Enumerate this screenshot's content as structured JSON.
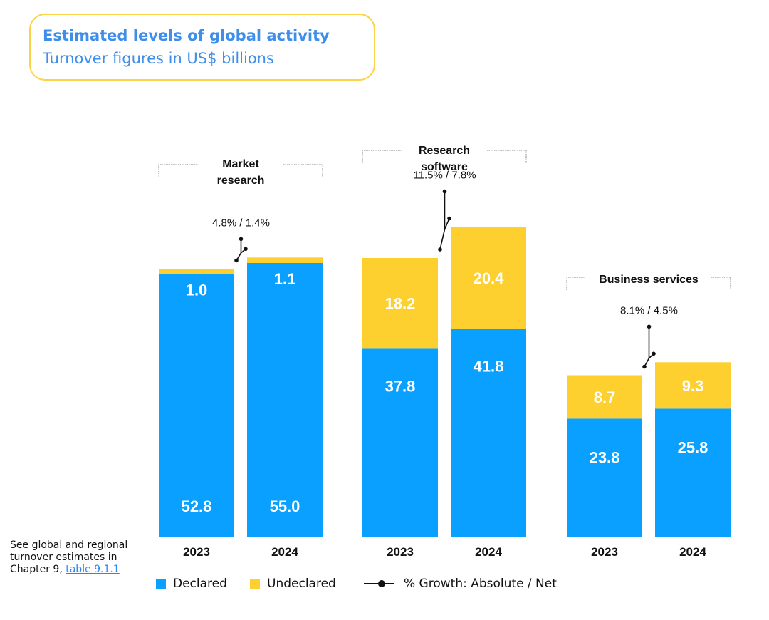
{
  "header": {
    "title": "Estimated levels of global activity",
    "subtitle": "Turnover figures in US$ billions"
  },
  "colors": {
    "declared": "#0aa0ff",
    "undeclared": "#fdd02f",
    "accent_title": "#3f8ee9",
    "title_border": "#fbd24a"
  },
  "chart_data": {
    "type": "bar",
    "stacked": true,
    "title": "Estimated levels of global activity",
    "subtitle": "Turnover figures in US$ billions",
    "unit": "US$ billions",
    "groups": [
      {
        "name_lines": [
          "Market",
          "research"
        ],
        "categories": [
          "2023",
          "2024"
        ],
        "declared": [
          52.8,
          55.0
        ],
        "undeclared": [
          1.0,
          1.1
        ],
        "growth_label": "4.8% / 1.4%"
      },
      {
        "name_lines": [
          "Research",
          "software"
        ],
        "categories": [
          "2023",
          "2024"
        ],
        "declared": [
          37.8,
          41.8
        ],
        "undeclared": [
          18.2,
          20.4
        ],
        "growth_label": "11.5% / 7.8%"
      },
      {
        "name_lines": [
          "Business services"
        ],
        "categories": [
          "2023",
          "2024"
        ],
        "declared": [
          23.8,
          25.8
        ],
        "undeclared": [
          8.7,
          9.3
        ],
        "growth_label": "8.1% / 4.5%"
      }
    ],
    "legend": [
      "Declared",
      "Undeclared",
      "% Growth: Absolute / Net"
    ]
  },
  "note": {
    "text": "See global and regional turnover estimates in Chapter 9,",
    "link": "table 9.1.1"
  }
}
